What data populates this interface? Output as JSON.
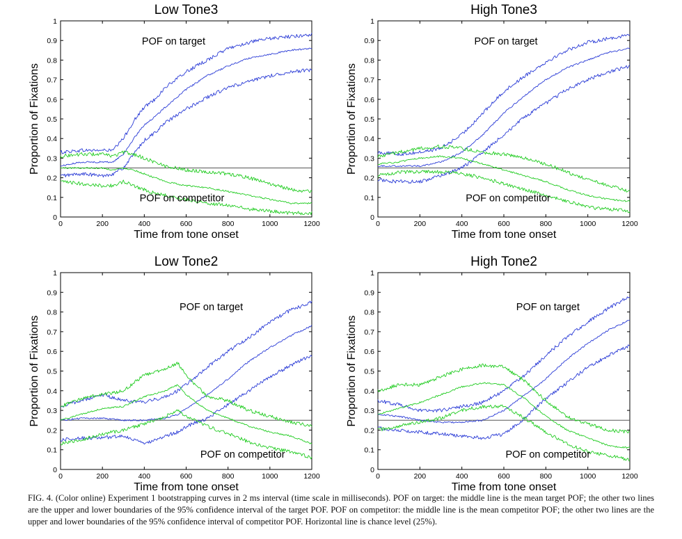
{
  "chart_data": [
    {
      "type": "line",
      "title": "Low Tone3",
      "xlabel": "Time from tone onset",
      "ylabel": "Proportion of Fixations",
      "xlim": [
        0,
        1200
      ],
      "ylim": [
        0,
        1
      ],
      "x_ticks": [
        "0",
        "200",
        "400",
        "600",
        "800",
        "1000",
        "1200"
      ],
      "y_ticks": [
        "0",
        "0.1",
        "0.2",
        "0.3",
        "0.4",
        "0.5",
        "0.6",
        "0.7",
        "0.8",
        "0.9",
        "1"
      ],
      "chance_level": 0.25,
      "annotations": [
        {
          "text": "POF on target",
          "x": 540,
          "y": 0.88
        },
        {
          "text": "POF on competitor",
          "x": 580,
          "y": 0.08
        }
      ],
      "x": [
        0,
        100,
        200,
        250,
        300,
        350,
        400,
        450,
        500,
        600,
        700,
        800,
        900,
        1000,
        1100,
        1200
      ],
      "series": [
        {
          "group": "target",
          "role": "upper",
          "color": "#2a3bd6",
          "values": [
            0.33,
            0.34,
            0.34,
            0.34,
            0.4,
            0.49,
            0.56,
            0.6,
            0.66,
            0.74,
            0.8,
            0.86,
            0.89,
            0.91,
            0.92,
            0.93
          ]
        },
        {
          "group": "target",
          "role": "mean",
          "color": "#2a3bd6",
          "values": [
            0.26,
            0.28,
            0.28,
            0.28,
            0.32,
            0.4,
            0.47,
            0.51,
            0.56,
            0.65,
            0.72,
            0.77,
            0.81,
            0.83,
            0.85,
            0.86
          ]
        },
        {
          "group": "target",
          "role": "lower",
          "color": "#2a3bd6",
          "values": [
            0.21,
            0.22,
            0.21,
            0.22,
            0.25,
            0.32,
            0.39,
            0.43,
            0.48,
            0.55,
            0.61,
            0.66,
            0.69,
            0.72,
            0.74,
            0.75
          ]
        },
        {
          "group": "competitor",
          "role": "upper",
          "color": "#22cc22",
          "values": [
            0.31,
            0.32,
            0.32,
            0.31,
            0.33,
            0.32,
            0.3,
            0.28,
            0.26,
            0.24,
            0.23,
            0.22,
            0.2,
            0.17,
            0.14,
            0.13
          ]
        },
        {
          "group": "competitor",
          "role": "mean",
          "color": "#22cc22",
          "values": [
            0.25,
            0.25,
            0.25,
            0.24,
            0.25,
            0.24,
            0.22,
            0.2,
            0.18,
            0.16,
            0.15,
            0.13,
            0.11,
            0.09,
            0.07,
            0.07
          ]
        },
        {
          "group": "competitor",
          "role": "lower",
          "color": "#22cc22",
          "values": [
            0.18,
            0.17,
            0.16,
            0.16,
            0.18,
            0.16,
            0.14,
            0.12,
            0.11,
            0.09,
            0.07,
            0.06,
            0.04,
            0.03,
            0.02,
            0.02
          ]
        }
      ]
    },
    {
      "type": "line",
      "title": "High Tone3",
      "xlabel": "Time from tone onset",
      "ylabel": "Proportion of Fixations",
      "xlim": [
        0,
        1200
      ],
      "ylim": [
        0,
        1
      ],
      "x_ticks": [
        "0",
        "200",
        "400",
        "600",
        "800",
        "1000",
        "1200"
      ],
      "y_ticks": [
        "0",
        "0.1",
        "0.2",
        "0.3",
        "0.4",
        "0.5",
        "0.6",
        "0.7",
        "0.8",
        "0.9",
        "1"
      ],
      "chance_level": 0.25,
      "annotations": [
        {
          "text": "POF on target",
          "x": 610,
          "y": 0.88
        },
        {
          "text": "POF on competitor",
          "x": 620,
          "y": 0.08
        }
      ],
      "x": [
        0,
        100,
        200,
        300,
        400,
        500,
        600,
        700,
        800,
        900,
        1000,
        1100,
        1200
      ],
      "series": [
        {
          "group": "target",
          "role": "upper",
          "color": "#2a3bd6",
          "values": [
            0.33,
            0.32,
            0.33,
            0.35,
            0.42,
            0.53,
            0.64,
            0.72,
            0.79,
            0.85,
            0.89,
            0.91,
            0.93
          ]
        },
        {
          "group": "target",
          "role": "mean",
          "color": "#2a3bd6",
          "values": [
            0.26,
            0.26,
            0.26,
            0.28,
            0.33,
            0.42,
            0.53,
            0.62,
            0.7,
            0.76,
            0.8,
            0.84,
            0.86
          ]
        },
        {
          "group": "target",
          "role": "lower",
          "color": "#2a3bd6",
          "values": [
            0.19,
            0.18,
            0.18,
            0.21,
            0.25,
            0.33,
            0.42,
            0.51,
            0.58,
            0.65,
            0.7,
            0.74,
            0.77
          ]
        },
        {
          "group": "competitor",
          "role": "upper",
          "color": "#22cc22",
          "values": [
            0.31,
            0.33,
            0.35,
            0.36,
            0.35,
            0.33,
            0.32,
            0.3,
            0.27,
            0.23,
            0.19,
            0.16,
            0.13
          ]
        },
        {
          "group": "competitor",
          "role": "mean",
          "color": "#22cc22",
          "values": [
            0.27,
            0.28,
            0.3,
            0.31,
            0.3,
            0.27,
            0.24,
            0.21,
            0.18,
            0.14,
            0.11,
            0.09,
            0.08
          ]
        },
        {
          "group": "competitor",
          "role": "lower",
          "color": "#22cc22",
          "values": [
            0.21,
            0.23,
            0.23,
            0.23,
            0.22,
            0.2,
            0.17,
            0.14,
            0.11,
            0.08,
            0.05,
            0.04,
            0.03
          ]
        }
      ]
    },
    {
      "type": "line",
      "title": "Low Tone2",
      "xlabel": "Time from tone onset",
      "ylabel": "Proportion of Fixations",
      "xlim": [
        0,
        1200
      ],
      "ylim": [
        0,
        1
      ],
      "x_ticks": [
        "0",
        "200",
        "400",
        "600",
        "800",
        "1000",
        "1200"
      ],
      "y_ticks": [
        "0",
        "0.1",
        "0.2",
        "0.3",
        "0.4",
        "0.5",
        "0.6",
        "0.7",
        "0.8",
        "0.9",
        "1"
      ],
      "chance_level": 0.25,
      "annotations": [
        {
          "text": "POF on target",
          "x": 720,
          "y": 0.81
        },
        {
          "text": "POF on competitor",
          "x": 870,
          "y": 0.06
        }
      ],
      "x": [
        0,
        100,
        200,
        300,
        400,
        500,
        560,
        600,
        700,
        800,
        900,
        1000,
        1100,
        1200
      ],
      "series": [
        {
          "group": "target",
          "role": "upper",
          "color": "#2a3bd6",
          "values": [
            0.32,
            0.35,
            0.38,
            0.35,
            0.34,
            0.37,
            0.4,
            0.43,
            0.52,
            0.6,
            0.67,
            0.75,
            0.81,
            0.85
          ]
        },
        {
          "group": "target",
          "role": "mean",
          "color": "#2a3bd6",
          "values": [
            0.25,
            0.26,
            0.26,
            0.25,
            0.25,
            0.26,
            0.28,
            0.31,
            0.38,
            0.46,
            0.55,
            0.62,
            0.68,
            0.73
          ]
        },
        {
          "group": "target",
          "role": "lower",
          "color": "#2a3bd6",
          "values": [
            0.15,
            0.16,
            0.16,
            0.17,
            0.13,
            0.17,
            0.19,
            0.22,
            0.26,
            0.33,
            0.4,
            0.47,
            0.53,
            0.58
          ]
        },
        {
          "group": "competitor",
          "role": "upper",
          "color": "#22cc22",
          "values": [
            0.32,
            0.36,
            0.38,
            0.4,
            0.48,
            0.51,
            0.54,
            0.48,
            0.37,
            0.35,
            0.3,
            0.27,
            0.24,
            0.22
          ]
        },
        {
          "group": "competitor",
          "role": "mean",
          "color": "#22cc22",
          "values": [
            0.25,
            0.28,
            0.31,
            0.32,
            0.37,
            0.4,
            0.43,
            0.38,
            0.3,
            0.26,
            0.22,
            0.19,
            0.17,
            0.13
          ]
        },
        {
          "group": "competitor",
          "role": "lower",
          "color": "#22cc22",
          "values": [
            0.13,
            0.15,
            0.18,
            0.2,
            0.23,
            0.27,
            0.3,
            0.27,
            0.22,
            0.18,
            0.14,
            0.11,
            0.09,
            0.06
          ]
        }
      ]
    },
    {
      "type": "line",
      "title": "High Tone2",
      "xlabel": "Time from tone onset",
      "ylabel": "Proportion of Fixations",
      "xlim": [
        0,
        1200
      ],
      "ylim": [
        0,
        1
      ],
      "x_ticks": [
        "0",
        "200",
        "400",
        "600",
        "800",
        "1000",
        "1200"
      ],
      "y_ticks": [
        "0",
        "0.1",
        "0.2",
        "0.3",
        "0.4",
        "0.5",
        "0.6",
        "0.7",
        "0.8",
        "0.9",
        "1"
      ],
      "chance_level": 0.25,
      "annotations": [
        {
          "text": "POF on target",
          "x": 810,
          "y": 0.81
        },
        {
          "text": "POF on competitor",
          "x": 810,
          "y": 0.06
        }
      ],
      "x": [
        0,
        100,
        200,
        300,
        400,
        500,
        600,
        700,
        800,
        900,
        1000,
        1100,
        1200
      ],
      "series": [
        {
          "group": "target",
          "role": "upper",
          "color": "#2a3bd6",
          "values": [
            0.35,
            0.33,
            0.3,
            0.3,
            0.32,
            0.34,
            0.4,
            0.48,
            0.58,
            0.67,
            0.75,
            0.82,
            0.88
          ]
        },
        {
          "group": "target",
          "role": "mean",
          "color": "#2a3bd6",
          "values": [
            0.28,
            0.27,
            0.25,
            0.24,
            0.24,
            0.25,
            0.3,
            0.38,
            0.46,
            0.56,
            0.64,
            0.71,
            0.76
          ]
        },
        {
          "group": "target",
          "role": "lower",
          "color": "#2a3bd6",
          "values": [
            0.21,
            0.2,
            0.19,
            0.18,
            0.17,
            0.16,
            0.18,
            0.26,
            0.36,
            0.44,
            0.52,
            0.58,
            0.63
          ]
        },
        {
          "group": "competitor",
          "role": "upper",
          "color": "#22cc22",
          "values": [
            0.4,
            0.43,
            0.43,
            0.47,
            0.51,
            0.53,
            0.52,
            0.45,
            0.35,
            0.27,
            0.23,
            0.2,
            0.19
          ]
        },
        {
          "group": "competitor",
          "role": "mean",
          "color": "#22cc22",
          "values": [
            0.28,
            0.31,
            0.34,
            0.38,
            0.42,
            0.44,
            0.43,
            0.36,
            0.27,
            0.2,
            0.16,
            0.12,
            0.11
          ]
        },
        {
          "group": "competitor",
          "role": "lower",
          "color": "#22cc22",
          "values": [
            0.2,
            0.22,
            0.24,
            0.26,
            0.3,
            0.32,
            0.32,
            0.26,
            0.19,
            0.13,
            0.09,
            0.07,
            0.05
          ]
        }
      ]
    }
  ],
  "caption": "FIG. 4. (Color online) Experiment 1 bootstrapping curves in 2 ms interval (time scale in milliseconds). POF on target: the middle line is the mean target POF; the other two lines are the upper and lower boundaries of the 95% confidence interval of the target POF. POF on competitor: the middle line is the mean competitor POF; the other two lines are the upper and lower boundaries of the 95% confidence interval of competitor POF. Horizontal line is chance level (25%)."
}
